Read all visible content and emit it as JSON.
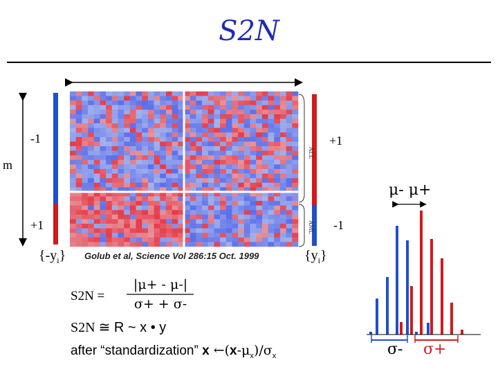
{
  "slide": {
    "title": "S2N",
    "m_label": "m",
    "left_bar": {
      "top_label": "-1",
      "bottom_label": "+1",
      "set_label": "{-y",
      "set_sub": "i",
      "set_close": "}"
    },
    "right_bar": {
      "top_label": "+1",
      "bottom_label": "-1",
      "set_label": "{y",
      "set_sub": "i",
      "set_close": "}"
    },
    "heatmap": {
      "row_label_top": "ALL",
      "row_label_bottom": "AML"
    },
    "citation": "Golub et al, Science Vol 286:15 Oct. 1999",
    "mu_label": "μ-  μ+",
    "sigma_minus": "σ-",
    "sigma_plus": "σ+",
    "formula": {
      "lhs": "S2N  =",
      "numerator": "|μ+ - μ-|",
      "denominator": "σ+ + σ-"
    },
    "approx_line": {
      "lhs": "S2N ",
      "approx": "≅",
      "rhs": " R ~ x • y"
    },
    "standardization": {
      "prefix": "after “standardization” ",
      "x": "x",
      "arrow": " ←(",
      "xb": "x",
      "mid": "-μ",
      "sub_x": "x",
      "close": ")/σ",
      "sub_x2": "x"
    },
    "colors": {
      "blue": "#1f4fd0",
      "red": "#d11a1a",
      "title": "#1f2bb8"
    }
  }
}
